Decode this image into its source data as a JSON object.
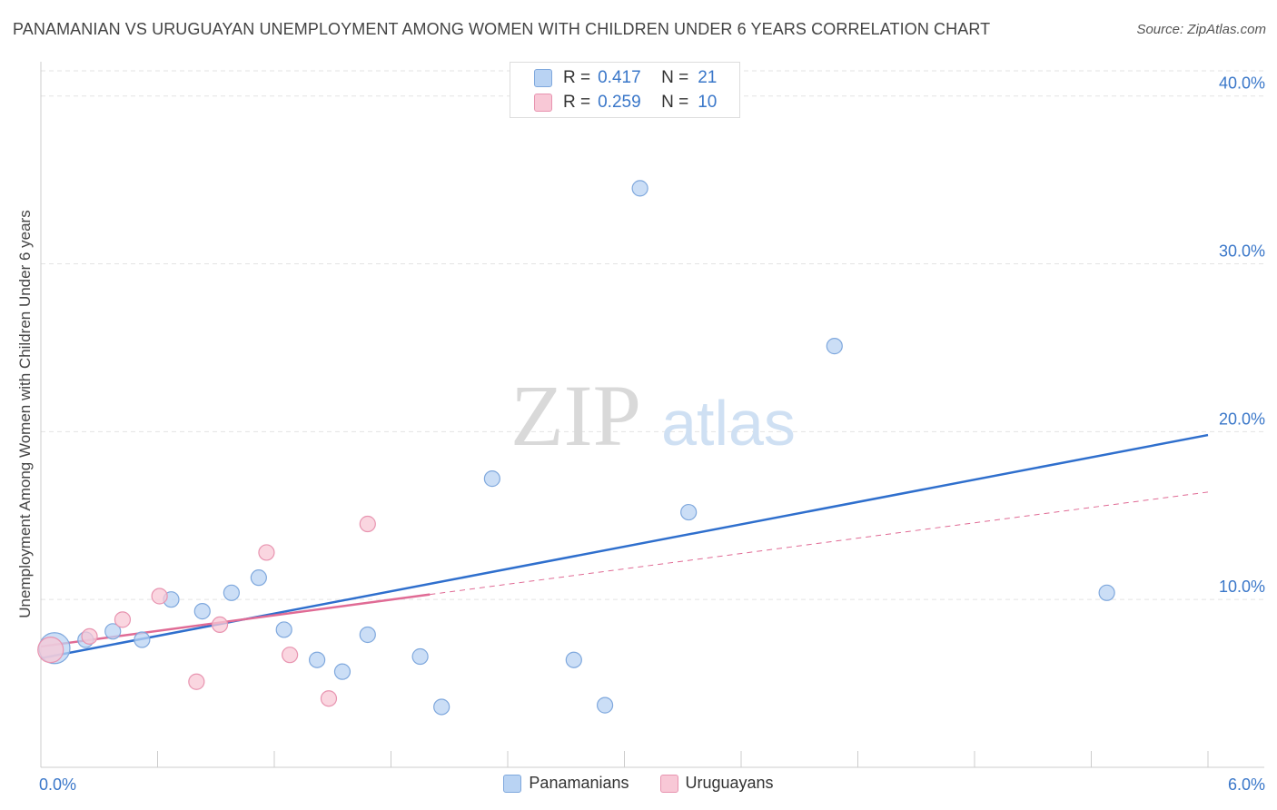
{
  "title": "PANAMANIAN VS URUGUAYAN UNEMPLOYMENT AMONG WOMEN WITH CHILDREN UNDER 6 YEARS CORRELATION CHART",
  "source": "Source: ZipAtlas.com",
  "watermark": {
    "zip": "ZIP",
    "atlas": "atlas"
  },
  "stats_legend": [
    {
      "r_label": "R =",
      "r_value": "0.417",
      "n_label": "N =",
      "n_value": "21"
    },
    {
      "r_label": "R =",
      "r_value": "0.259",
      "n_label": "N =",
      "n_value": "10"
    }
  ],
  "colors": {
    "panamanians_fill": "#b9d3f3",
    "panamanians_stroke": "#7fa8dd",
    "panamanians_line": "#2f6fcd",
    "uruguayans_fill": "#f8c8d6",
    "uruguayans_stroke": "#e894b0",
    "uruguayans_line": "#e06b95",
    "tick_label": "#3a77c9",
    "grid": "#e3e3e3"
  },
  "chart_data": {
    "type": "scatter",
    "title": "PANAMANIAN VS URUGUAYAN UNEMPLOYMENT AMONG WOMEN WITH CHILDREN UNDER 6 YEARS CORRELATION CHART",
    "xlabel": "",
    "ylabel": "Unemployment Among Women with Children Under 6 years",
    "xlim": [
      0,
      6
    ],
    "ylim": [
      0,
      41.5
    ],
    "x_tick_labels": [
      {
        "value": 0,
        "label": "0.0%"
      },
      {
        "value": 6,
        "label": "6.0%"
      }
    ],
    "y_tick_labels": [
      {
        "value": 10,
        "label": "10.0%"
      },
      {
        "value": 20,
        "label": "20.0%"
      },
      {
        "value": 30,
        "label": "30.0%"
      },
      {
        "value": 40,
        "label": "40.0%"
      }
    ],
    "series": [
      {
        "name": "Panamanians",
        "points": [
          {
            "x": 0.07,
            "y": 7.1,
            "size": "large"
          },
          {
            "x": 0.23,
            "y": 7.6
          },
          {
            "x": 0.37,
            "y": 8.1
          },
          {
            "x": 0.52,
            "y": 7.6
          },
          {
            "x": 0.67,
            "y": 10.0
          },
          {
            "x": 0.83,
            "y": 9.3
          },
          {
            "x": 0.98,
            "y": 10.4
          },
          {
            "x": 1.12,
            "y": 11.3
          },
          {
            "x": 1.25,
            "y": 8.2
          },
          {
            "x": 1.42,
            "y": 6.4
          },
          {
            "x": 1.55,
            "y": 5.7
          },
          {
            "x": 1.68,
            "y": 7.9
          },
          {
            "x": 1.95,
            "y": 6.6
          },
          {
            "x": 2.06,
            "y": 3.6
          },
          {
            "x": 2.32,
            "y": 17.2
          },
          {
            "x": 2.74,
            "y": 6.4
          },
          {
            "x": 2.9,
            "y": 3.7
          },
          {
            "x": 3.08,
            "y": 34.5
          },
          {
            "x": 3.33,
            "y": 15.2
          },
          {
            "x": 4.08,
            "y": 25.1
          },
          {
            "x": 5.48,
            "y": 10.4
          }
        ],
        "trend": {
          "x": [
            0.0,
            6.0
          ],
          "y": [
            6.5,
            19.8
          ]
        }
      },
      {
        "name": "Uruguayans",
        "points": [
          {
            "x": 0.05,
            "y": 7.0,
            "size": "large"
          },
          {
            "x": 0.25,
            "y": 7.8
          },
          {
            "x": 0.42,
            "y": 8.8
          },
          {
            "x": 0.61,
            "y": 10.2
          },
          {
            "x": 0.8,
            "y": 5.1
          },
          {
            "x": 0.92,
            "y": 8.5
          },
          {
            "x": 1.16,
            "y": 12.8
          },
          {
            "x": 1.28,
            "y": 6.7
          },
          {
            "x": 1.48,
            "y": 4.1
          },
          {
            "x": 1.68,
            "y": 14.5
          }
        ],
        "trend": {
          "x": [
            0.0,
            2.0
          ],
          "y": [
            7.2,
            10.3
          ]
        },
        "trend_extension": {
          "x": [
            2.0,
            6.0
          ],
          "y": [
            10.3,
            16.4
          ]
        }
      }
    ],
    "legend": [
      "Panamanians",
      "Uruguayans"
    ]
  }
}
